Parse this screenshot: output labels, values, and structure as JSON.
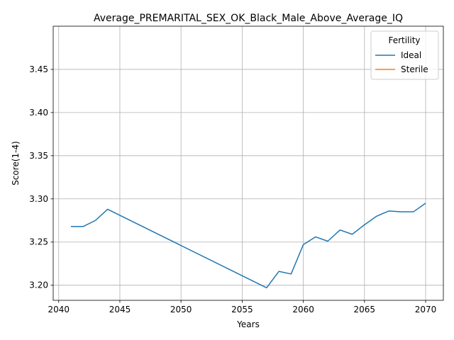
{
  "chart_data": {
    "type": "line",
    "title": "Average_PREMARITAL_SEX_OK_Black_Male_Above_Average_IQ",
    "xlabel": "Years",
    "ylabel": "Score(1-4)",
    "xlim": [
      2039.55,
      2071.45
    ],
    "ylim": [
      3.1825,
      3.5
    ],
    "xticks": [
      2040,
      2045,
      2050,
      2055,
      2060,
      2065,
      2070
    ],
    "xtick_labels": [
      "2040",
      "2045",
      "2050",
      "2055",
      "2060",
      "2065",
      "2070"
    ],
    "yticks": [
      3.2,
      3.25,
      3.3,
      3.35,
      3.4,
      3.45
    ],
    "ytick_labels": [
      "3.20",
      "3.25",
      "3.30",
      "3.35",
      "3.40",
      "3.45"
    ],
    "grid": true,
    "legend": {
      "title": "Fertility",
      "placement": "top-right"
    },
    "series": [
      {
        "name": "Ideal",
        "color": "#1f77b4",
        "x": [
          2041,
          2042,
          2043,
          2044,
          2057,
          2058,
          2059,
          2060,
          2061,
          2062,
          2063,
          2064,
          2065,
          2066,
          2067,
          2068,
          2069,
          2070
        ],
        "y": [
          3.268,
          3.268,
          3.275,
          3.288,
          3.197,
          3.216,
          3.213,
          3.247,
          3.256,
          3.251,
          3.264,
          3.259,
          3.27,
          3.28,
          3.286,
          3.285,
          3.285,
          3.295
        ]
      },
      {
        "name": "Sterile",
        "color": "#ff7f0e",
        "x": [],
        "y": []
      }
    ]
  }
}
